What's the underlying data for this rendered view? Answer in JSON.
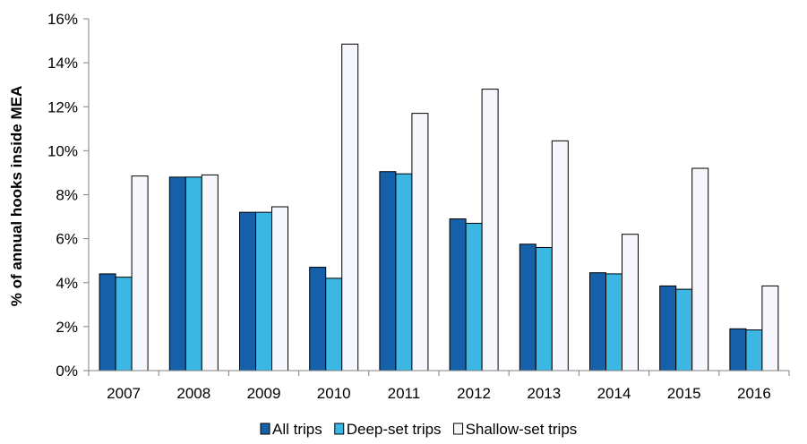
{
  "chart_data": {
    "type": "bar",
    "title": "",
    "xlabel": "",
    "ylabel": "% of annual hooks inside MEA",
    "categories": [
      "2007",
      "2008",
      "2009",
      "2010",
      "2011",
      "2012",
      "2013",
      "2014",
      "2015",
      "2016"
    ],
    "series": [
      {
        "name": "All trips",
        "color": "#1560a8",
        "values": [
          4.4,
          8.8,
          7.2,
          4.7,
          9.05,
          6.9,
          5.75,
          4.45,
          3.85,
          1.9
        ]
      },
      {
        "name": "Deep-set trips",
        "color": "#3cb6e3",
        "values": [
          4.25,
          8.8,
          7.2,
          4.2,
          8.95,
          6.7,
          5.6,
          4.4,
          3.7,
          1.85
        ]
      },
      {
        "name": "Shallow-set trips",
        "color": "#f5f7fc",
        "values": [
          8.85,
          8.9,
          7.45,
          14.85,
          11.7,
          12.8,
          10.45,
          6.2,
          9.2,
          3.85
        ]
      }
    ],
    "ylim": [
      0,
      16
    ],
    "yticks": [
      "0%",
      "2%",
      "4%",
      "6%",
      "8%",
      "10%",
      "12%",
      "14%",
      "16%"
    ],
    "grid": false,
    "legend": "bottom-center"
  }
}
